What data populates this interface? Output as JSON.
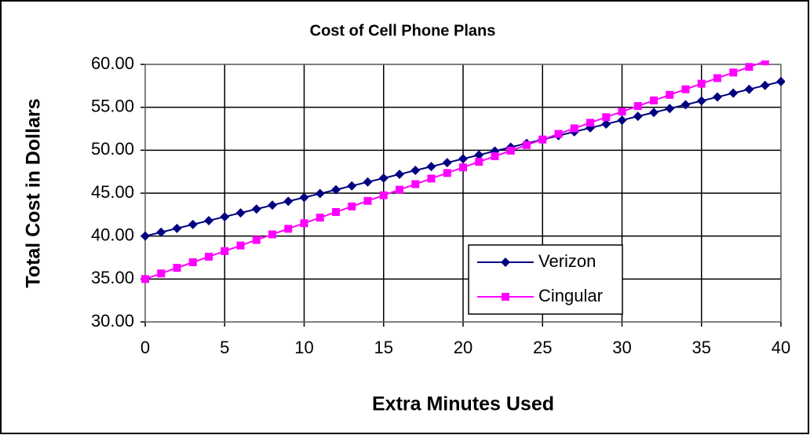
{
  "chart_data": {
    "type": "line",
    "title": "Cost of Cell Phone Plans",
    "x_label": "Extra Minutes Used",
    "y_label": "Total Cost in Dollars",
    "x": [
      0,
      1,
      2,
      3,
      4,
      5,
      6,
      7,
      8,
      9,
      10,
      11,
      12,
      13,
      14,
      15,
      16,
      17,
      18,
      19,
      20,
      21,
      22,
      23,
      24,
      25,
      26,
      27,
      28,
      29,
      30,
      31,
      32,
      33,
      34,
      35,
      36,
      37,
      38,
      39,
      40
    ],
    "series": [
      {
        "name": "Verizon",
        "color": "#000080",
        "marker": "diamond",
        "values": [
          40,
          40.45,
          40.9,
          41.35,
          41.8,
          42.25,
          42.7,
          43.15,
          43.6,
          44.05,
          44.5,
          44.95,
          45.4,
          45.85,
          46.3,
          46.75,
          47.2,
          47.65,
          48.1,
          48.55,
          49,
          49.45,
          49.9,
          50.35,
          50.8,
          51.25,
          51.7,
          52.15,
          52.6,
          53.05,
          53.5,
          53.95,
          54.4,
          54.85,
          55.3,
          55.75,
          56.2,
          56.65,
          57.1,
          57.55,
          58
        ]
      },
      {
        "name": "Cingular",
        "color": "#ff00ff",
        "marker": "square",
        "values": [
          35,
          35.65,
          36.3,
          36.95,
          37.6,
          38.25,
          38.9,
          39.55,
          40.2,
          40.85,
          41.5,
          42.15,
          42.8,
          43.45,
          44.1,
          44.75,
          45.4,
          46.05,
          46.7,
          47.35,
          48,
          48.65,
          49.3,
          49.95,
          50.6,
          51.25,
          51.9,
          52.55,
          53.2,
          53.85,
          54.5,
          55.15,
          55.8,
          56.45,
          57.1,
          57.75,
          58.4,
          59.05,
          59.7,
          60.35,
          61
        ]
      }
    ],
    "xlim": [
      0,
      40
    ],
    "xticks": [
      0,
      5,
      10,
      15,
      20,
      25,
      30,
      35,
      40
    ],
    "ylim": [
      30,
      60
    ],
    "yticks": [
      {
        "value": 30,
        "label": "30.00"
      },
      {
        "value": 35,
        "label": "35.00"
      },
      {
        "value": 40,
        "label": "40.00"
      },
      {
        "value": 45,
        "label": "45.00"
      },
      {
        "value": 50,
        "label": "50.00"
      },
      {
        "value": 55,
        "label": "55.00"
      },
      {
        "value": 60,
        "label": "60.00"
      }
    ],
    "grid": true
  }
}
